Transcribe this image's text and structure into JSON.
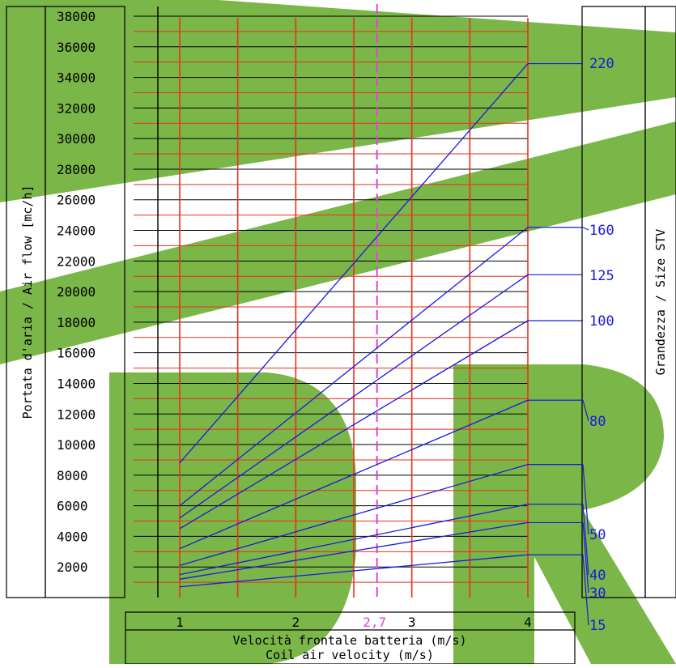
{
  "chart_data": {
    "type": "line",
    "xlabel_it": "Velocità frontale batteria (m/s)",
    "xlabel_en": "Coil air velocity (m/s)",
    "ylabel": "Portata d'aria / Air flow [mc/h]",
    "right_label": "Grandezza / Size STV",
    "x_ticks": [
      "1",
      "2",
      "3",
      "4"
    ],
    "x_highlight": {
      "value": 2.7,
      "label": "2,7"
    },
    "xlim": [
      1,
      4
    ],
    "ylim": [
      0,
      38000
    ],
    "y_ticks": [
      "2000",
      "4000",
      "6000",
      "8000",
      "10000",
      "12000",
      "14000",
      "16000",
      "18000",
      "20000",
      "22000",
      "24000",
      "26000",
      "28000",
      "30000",
      "32000",
      "34000",
      "36000",
      "38000"
    ],
    "series": [
      {
        "name": "15",
        "x": [
          1,
          4
        ],
        "y": [
          700,
          2800
        ]
      },
      {
        "name": "30",
        "x": [
          1,
          4
        ],
        "y": [
          1200,
          4900
        ]
      },
      {
        "name": "40",
        "x": [
          1,
          4
        ],
        "y": [
          1500,
          6100
        ]
      },
      {
        "name": "50",
        "x": [
          1,
          4
        ],
        "y": [
          2100,
          8700
        ]
      },
      {
        "name": "80",
        "x": [
          1,
          4
        ],
        "y": [
          3200,
          12900
        ]
      },
      {
        "name": "100",
        "x": [
          1,
          4
        ],
        "y": [
          4500,
          18100
        ]
      },
      {
        "name": "125",
        "x": [
          1,
          4
        ],
        "y": [
          5200,
          21100
        ]
      },
      {
        "name": "160",
        "x": [
          1,
          4
        ],
        "y": [
          6000,
          24200
        ]
      },
      {
        "name": "220",
        "x": [
          1,
          4
        ],
        "y": [
          8800,
          34900
        ]
      }
    ],
    "grid": true
  },
  "colors": {
    "grid_red": "#e8321c",
    "grid_black": "#000000",
    "series_blue": "#1a1adc",
    "highlight_magenta": "#e040e0",
    "watermark_green": "#7ab648"
  }
}
